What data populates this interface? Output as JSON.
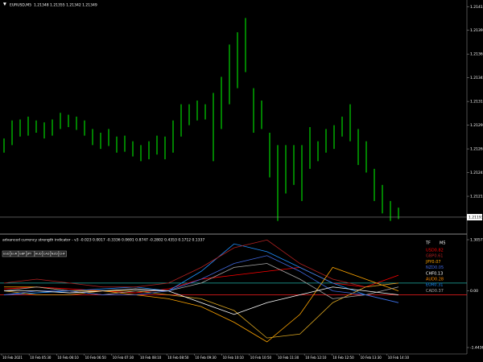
{
  "header": {
    "symbol": "EURUSD,M5",
    "quote": "1.21348 1.21355 1.21342 1.21349"
  },
  "price_chart": {
    "type": "ohlc-bars",
    "color": "#00ff00",
    "ylim": [
      1.21176,
      1.21422
    ],
    "yticks": [
      {
        "value": 1.21415,
        "label": "1.21415"
      },
      {
        "value": 1.2139,
        "label": "1.21390"
      },
      {
        "value": 1.21365,
        "label": "1.21365"
      },
      {
        "value": 1.2134,
        "label": "1.21340"
      },
      {
        "value": 1.21315,
        "label": "1.21315"
      },
      {
        "value": 1.2129,
        "label": "1.21290"
      },
      {
        "value": 1.21265,
        "label": "1.21265"
      },
      {
        "value": 1.2124,
        "label": "1.21240"
      },
      {
        "value": 1.21215,
        "label": "1.21215"
      }
    ],
    "current_price": 1.21193,
    "high": [
      1.21276,
      1.21295,
      1.21296,
      1.21299,
      1.21295,
      1.21293,
      1.21296,
      1.21303,
      1.21301,
      1.21299,
      1.21295,
      1.21286,
      1.21282,
      1.21286,
      1.21278,
      1.21279,
      1.21273,
      1.21269,
      1.21273,
      1.21279,
      1.21278,
      1.21295,
      1.21312,
      1.21312,
      1.21316,
      1.21312,
      1.21324,
      1.21341,
      1.21375,
      1.21388,
      1.21403,
      1.21329,
      1.21316,
      1.21282,
      1.21269,
      1.21269,
      1.21269,
      1.21269,
      1.21288,
      1.21273,
      1.21286,
      1.2129,
      1.21299,
      1.21312,
      1.21286,
      1.21273,
      1.21244,
      1.21227,
      1.2121,
      1.21203
    ],
    "low": [
      1.21261,
      1.21269,
      1.21278,
      1.21279,
      1.21282,
      1.21276,
      1.21279,
      1.21286,
      1.21288,
      1.21285,
      1.21279,
      1.21269,
      1.21265,
      1.21268,
      1.21261,
      1.21262,
      1.21257,
      1.21252,
      1.21254,
      1.21259,
      1.21254,
      1.21261,
      1.21278,
      1.2129,
      1.21295,
      1.21296,
      1.21252,
      1.21286,
      1.21312,
      1.21329,
      1.21346,
      1.21282,
      1.21286,
      1.21235,
      1.21189,
      1.21218,
      1.21227,
      1.2121,
      1.21244,
      1.21252,
      1.21261,
      1.21265,
      1.21278,
      1.21273,
      1.21248,
      1.2124,
      1.2121,
      1.21197,
      1.21189,
      1.21191
    ]
  },
  "indicator": {
    "type": "line",
    "title": "advanced currency strength indicator - v3 -0.023 0.0017 -0.3336 0.0691 0.8747 -0.2802 0.4353 0.1712 0.1337",
    "buttons": [
      "USD",
      "EUR",
      "GBP",
      "JPY",
      "AUD",
      "CAD",
      "NZD",
      "CHF"
    ],
    "ylim": [
      -1.4436,
      1.3057
    ],
    "yticks": [
      {
        "value": 1.3057,
        "label": "1.3057"
      },
      {
        "value": 0,
        "label": "0.00"
      },
      {
        "value": -1.4436,
        "label": "-1.4436"
      }
    ],
    "levels": [
      {
        "value": 0.2,
        "color": "#20b2aa"
      },
      {
        "value": -0.1,
        "color": "#ff2020"
      }
    ],
    "legend_title": [
      "TF",
      "M5"
    ],
    "legend": [
      {
        "text": "USD0.82",
        "color": "#ff0000"
      },
      {
        "text": "GBP0.61",
        "color": "#b22222"
      },
      {
        "text": "JPY0.07",
        "color": "#ffa500"
      },
      {
        "text": "NZD0.05",
        "color": "#4169e1"
      },
      {
        "text": "CHF0.13",
        "color": "#ffffff"
      },
      {
        "text": "AUD0.28",
        "color": "#ff8c00"
      },
      {
        "text": "EUR0.31",
        "color": "#1e90ff"
      },
      {
        "text": "CAD0.37",
        "color": "#a9a9a9"
      }
    ],
    "series": [
      {
        "name": "USD",
        "color": "#ff0000",
        "values": [
          0.05,
          0.1,
          0.05,
          0,
          -0.05,
          0.05,
          0.3,
          0.4,
          0.5,
          0.6,
          0.2,
          0.1,
          0.4
        ]
      },
      {
        "name": "EUR",
        "color": "#1e90ff",
        "values": [
          -0.1,
          -0.05,
          0,
          0.05,
          0.1,
          0,
          0.5,
          1.2,
          1.0,
          0.6,
          0.2,
          -0.1,
          -0.3
        ]
      },
      {
        "name": "GBP",
        "color": "#b22222",
        "values": [
          0.2,
          0.3,
          0.2,
          0.1,
          0.1,
          0.2,
          0.6,
          1.1,
          1.3,
          0.7,
          0.3,
          0.1,
          0.2
        ]
      },
      {
        "name": "JPY",
        "color": "#ffa500",
        "values": [
          0.1,
          0.1,
          0,
          0,
          -0.1,
          -0.2,
          -0.4,
          -0.8,
          -1.3,
          -0.6,
          0.6,
          0.3,
          0
        ]
      },
      {
        "name": "AUD",
        "color": "#daa520",
        "values": [
          0,
          -0.1,
          -0.1,
          0,
          0,
          -0.1,
          -0.2,
          -0.5,
          -1.2,
          -1.1,
          -0.3,
          0.1,
          0.2
        ]
      },
      {
        "name": "CAD",
        "color": "#a9a9a9",
        "values": [
          0,
          0.1,
          0,
          -0.1,
          0,
          0,
          0.2,
          0.6,
          0.7,
          0.3,
          -0.2,
          -0.1,
          0.1
        ]
      },
      {
        "name": "NZD",
        "color": "#4169e1",
        "values": [
          -0.1,
          0,
          0,
          -0.1,
          -0.1,
          0,
          0.3,
          0.7,
          0.9,
          0.5,
          0,
          -0.1,
          -0.3
        ]
      },
      {
        "name": "CHF",
        "color": "#ffffff",
        "values": [
          0,
          0,
          -0.05,
          0,
          0.05,
          0,
          -0.3,
          -0.6,
          -0.3,
          -0.1,
          0.1,
          0,
          -0.1
        ]
      }
    ]
  },
  "time_axis": [
    "10 Feb 2021",
    "10 Feb 05:30",
    "10 Feb 06:10",
    "10 Feb 06:50",
    "10 Feb 07:30",
    "10 Feb 08:10",
    "10 Feb 08:50",
    "10 Feb 09:30",
    "10 Feb 10:10",
    "10 Feb 10:50",
    "10 Feb 11:30",
    "10 Feb 12:10",
    "10 Feb 12:50",
    "10 Feb 13:30",
    "10 Feb 14:10"
  ]
}
